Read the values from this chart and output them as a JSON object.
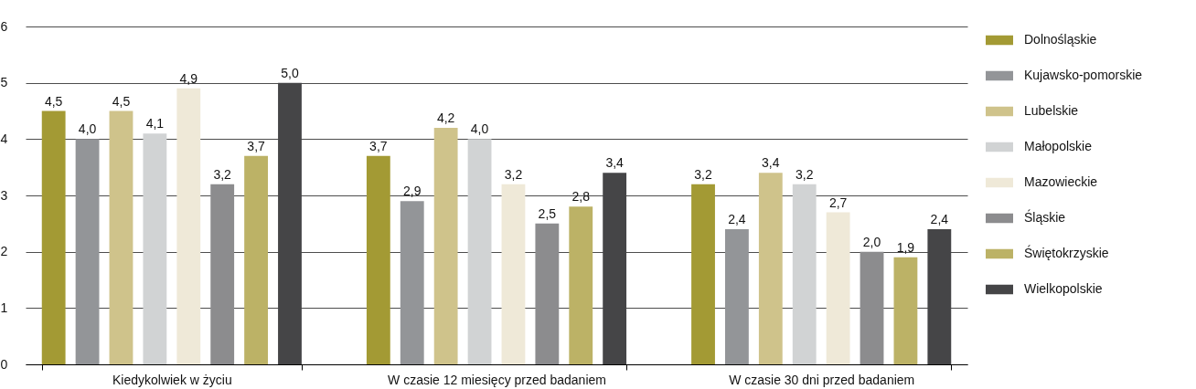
{
  "chart_data": {
    "type": "bar",
    "categories": [
      "Kiedykolwiek w życiu",
      "W czasie 12 miesięcy przed badaniem",
      "W czasie 30 dni przed badaniem"
    ],
    "series": [
      {
        "name": "Dolnośląskie",
        "color": "#a39a34",
        "values": [
          4.5,
          3.7,
          3.2
        ],
        "value_labels": [
          "4,5",
          "3,7",
          "3,2"
        ]
      },
      {
        "name": "Kujawsko-pomorskie",
        "color": "#939598",
        "values": [
          4.0,
          2.9,
          2.4
        ],
        "value_labels": [
          "4,0",
          "2,9",
          "2,4"
        ]
      },
      {
        "name": "Lubelskie",
        "color": "#cfc38b",
        "values": [
          4.5,
          4.2,
          3.4
        ],
        "value_labels": [
          "4,5",
          "4,2",
          "3,4"
        ]
      },
      {
        "name": "Małopolskie",
        "color": "#d1d3d4",
        "values": [
          4.1,
          4.0,
          3.2
        ],
        "value_labels": [
          "4,1",
          "4,0",
          "3,2"
        ]
      },
      {
        "name": "Mazowieckie",
        "color": "#efe9d8",
        "values": [
          4.9,
          3.2,
          2.7
        ],
        "value_labels": [
          "4,9",
          "3,2",
          "2,7"
        ]
      },
      {
        "name": "Śląskie",
        "color": "#8c8c8e",
        "values": [
          3.2,
          2.5,
          2.0
        ],
        "value_labels": [
          "3,2",
          "2,5",
          "2,0"
        ]
      },
      {
        "name": "Świętokrzyskie",
        "color": "#bcb266",
        "values": [
          3.7,
          2.8,
          1.9
        ],
        "value_labels": [
          "3,7",
          "2,8",
          "1,9"
        ]
      },
      {
        "name": "Wielkopolskie",
        "color": "#454547",
        "values": [
          5.0,
          3.4,
          2.4
        ],
        "value_labels": [
          "5,0",
          "3,4",
          "2,4"
        ]
      }
    ],
    "ylim": [
      0,
      6
    ],
    "yticks": [
      0,
      1,
      2,
      3,
      4,
      5,
      6
    ],
    "grid": "y",
    "legend": "right"
  }
}
